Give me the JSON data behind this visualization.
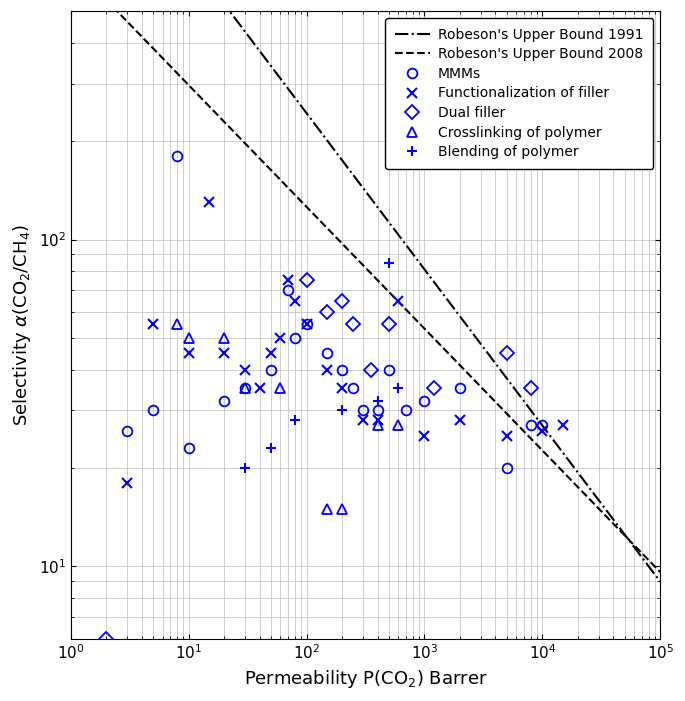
{
  "xlabel": "Permeability P(CO$_2$) Barrer",
  "ylabel": "Selectivity $\\alpha$(CO$_2$/CH$_4$)",
  "xlim": [
    1,
    100000
  ],
  "ylim": [
    6,
    500
  ],
  "robeson_1991": {
    "alpha": -0.4779,
    "k": 2200,
    "label": "Robeson's Upper Bound 1991",
    "linestyle": "-.",
    "color": "#000000",
    "linewidth": 1.5
  },
  "robeson_2008": {
    "alpha": -0.3726,
    "k": 700,
    "label": "Robeson's Upper Bound 2008",
    "linestyle": "--",
    "color": "#000000",
    "linewidth": 1.5
  },
  "MMMs": {
    "x": [
      3,
      5,
      8,
      10,
      20,
      30,
      50,
      70,
      80,
      100,
      150,
      200,
      250,
      300,
      400,
      500,
      700,
      1000,
      2000,
      5000,
      8000,
      10000
    ],
    "y": [
      26,
      30,
      180,
      23,
      32,
      35,
      40,
      70,
      50,
      55,
      45,
      40,
      35,
      30,
      30,
      40,
      30,
      32,
      35,
      20,
      27,
      27
    ],
    "marker": "o",
    "label": "MMMs",
    "markersize": 7
  },
  "Functionalization": {
    "x": [
      3,
      5,
      10,
      15,
      20,
      30,
      40,
      50,
      60,
      70,
      80,
      100,
      150,
      200,
      300,
      400,
      600,
      1000,
      2000,
      5000,
      10000,
      15000
    ],
    "y": [
      18,
      55,
      45,
      130,
      45,
      40,
      35,
      45,
      50,
      75,
      65,
      55,
      40,
      35,
      28,
      28,
      65,
      25,
      28,
      25,
      26,
      27
    ],
    "marker": "x",
    "label": "Functionalization of filler",
    "markersize": 7
  },
  "DualFiller": {
    "x": [
      2,
      100,
      150,
      200,
      250,
      350,
      500,
      1200,
      5000,
      8000
    ],
    "y": [
      6,
      75,
      60,
      65,
      55,
      40,
      55,
      35,
      45,
      35
    ],
    "marker": "D",
    "label": "Dual filler",
    "markersize": 7
  },
  "Crosslinking": {
    "x": [
      8,
      10,
      20,
      30,
      60,
      150,
      200,
      400,
      600
    ],
    "y": [
      55,
      50,
      50,
      35,
      35,
      15,
      15,
      27,
      27
    ],
    "marker": "^",
    "label": "Crosslinking of polymer",
    "markersize": 7
  },
  "Blending": {
    "x": [
      30,
      50,
      80,
      200,
      400,
      500,
      600
    ],
    "y": [
      20,
      23,
      28,
      30,
      32,
      85,
      35
    ],
    "marker": "+",
    "label": "Blending of polymer",
    "markersize": 7
  },
  "data_color": "#0000FF",
  "grid_color": "#bbbbbb",
  "background": "#ffffff"
}
